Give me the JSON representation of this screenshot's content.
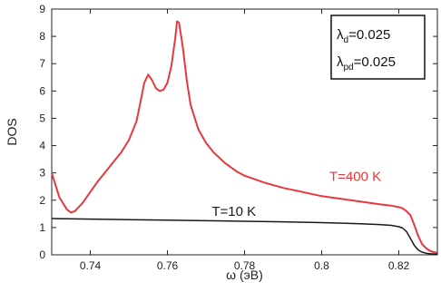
{
  "chart_data": {
    "type": "line",
    "xlabel": "ω (эВ)",
    "ylabel": "DOS",
    "xlim": [
      0.73,
      0.83
    ],
    "ylim": [
      0,
      9
    ],
    "x_ticks": [
      0.74,
      0.76,
      0.78,
      0.8,
      0.82
    ],
    "x_tick_labels": [
      "0.74",
      "0.76",
      "0.78",
      "0.8",
      "0.82"
    ],
    "y_ticks": [
      0,
      1,
      2,
      3,
      4,
      5,
      6,
      7,
      8,
      9
    ],
    "y_tick_labels": [
      "0",
      "1",
      "2",
      "3",
      "4",
      "5",
      "6",
      "7",
      "8",
      "9"
    ],
    "grid": false,
    "legend_box": {
      "placement": "top-right",
      "lines": [
        {
          "symbol": "λ",
          "sub": "d",
          "value": "=0.025"
        },
        {
          "symbol": "λ",
          "sub": "pd",
          "value": "=0.025"
        }
      ]
    },
    "series": [
      {
        "name": "T=400 K",
        "color": "#e8383d",
        "x": [
          0.73,
          0.732,
          0.734,
          0.735,
          0.736,
          0.738,
          0.74,
          0.742,
          0.744,
          0.746,
          0.748,
          0.75,
          0.752,
          0.753,
          0.754,
          0.755,
          0.756,
          0.757,
          0.758,
          0.759,
          0.76,
          0.761,
          0.762,
          0.7625,
          0.763,
          0.764,
          0.765,
          0.766,
          0.768,
          0.77,
          0.772,
          0.775,
          0.778,
          0.78,
          0.785,
          0.79,
          0.795,
          0.8,
          0.805,
          0.81,
          0.815,
          0.818,
          0.82,
          0.821,
          0.822,
          0.823,
          0.824,
          0.825,
          0.826,
          0.827,
          0.828,
          0.829,
          0.83
        ],
        "y": [
          3.0,
          2.1,
          1.65,
          1.55,
          1.6,
          1.9,
          2.3,
          2.7,
          3.05,
          3.4,
          3.75,
          4.2,
          4.9,
          5.6,
          6.3,
          6.6,
          6.4,
          6.1,
          6.0,
          6.05,
          6.3,
          6.9,
          7.9,
          8.55,
          8.5,
          7.6,
          6.4,
          5.5,
          4.6,
          4.1,
          3.75,
          3.35,
          3.05,
          2.9,
          2.65,
          2.45,
          2.3,
          2.15,
          2.05,
          1.95,
          1.85,
          1.8,
          1.75,
          1.7,
          1.6,
          1.45,
          1.1,
          0.7,
          0.4,
          0.25,
          0.15,
          0.1,
          0.08
        ]
      },
      {
        "name": "T=10 K",
        "color": "#1a1a1a",
        "x": [
          0.73,
          0.74,
          0.75,
          0.76,
          0.77,
          0.78,
          0.79,
          0.8,
          0.81,
          0.815,
          0.818,
          0.82,
          0.821,
          0.822,
          0.823,
          0.824,
          0.825,
          0.826,
          0.827,
          0.828,
          0.829,
          0.83
        ],
        "y": [
          1.33,
          1.31,
          1.29,
          1.27,
          1.25,
          1.23,
          1.21,
          1.18,
          1.14,
          1.11,
          1.08,
          1.03,
          0.98,
          0.85,
          0.6,
          0.35,
          0.18,
          0.1,
          0.06,
          0.04,
          0.03,
          0.03
        ]
      }
    ],
    "annotations": [
      {
        "text": "T=400 K",
        "x": 0.802,
        "y": 2.7,
        "color": "#e8383d"
      },
      {
        "text": "T=10 K",
        "x": 0.7715,
        "y": 1.42,
        "color": "#1a1a1a"
      }
    ]
  }
}
